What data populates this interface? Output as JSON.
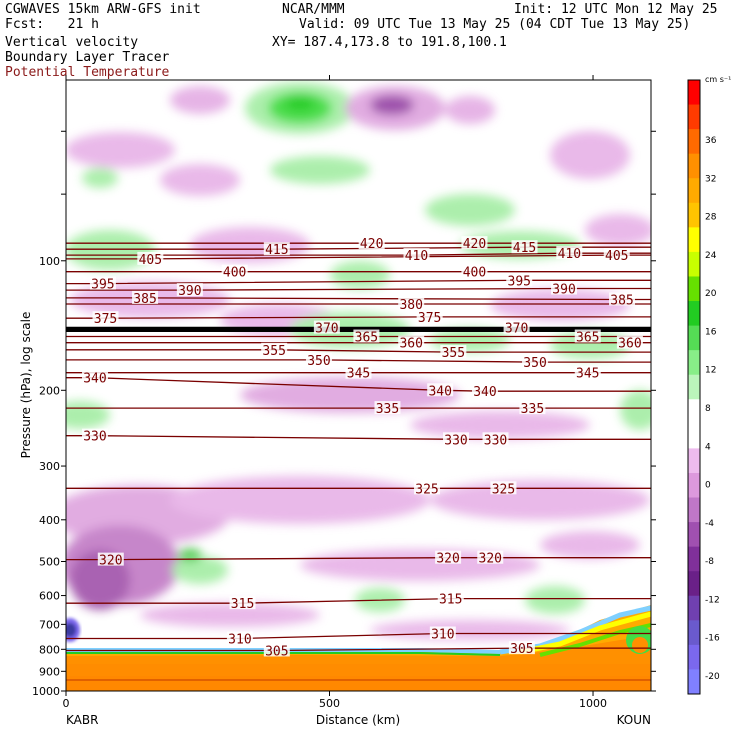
{
  "header": {
    "model": "CGWAVES 15km ARW-GFS init",
    "fcst": "Fcst:   21 h",
    "field1": "Vertical velocity",
    "field2": "Boundary Layer Tracer",
    "field3": "Potential Temperature",
    "center": "NCAR/MMM",
    "xy": "XY= 187.4,173.8 to 191.8,100.1",
    "init": "Init: 12 UTC Mon 12 May 25",
    "valid": "Valid: 09 UTC Tue 13 May 25 (04 CDT Tue 13 May 25)"
  },
  "colorbar": {
    "unit": "cm s⁻¹",
    "labels": [
      "36",
      "32",
      "28",
      "24",
      "20",
      "16",
      "12",
      "8",
      "4",
      "0",
      "-4",
      "-8",
      "-12",
      "-16",
      "-20"
    ],
    "colors": [
      "#ff0000",
      "#ff3b00",
      "#ff6a00",
      "#ff9000",
      "#ffaa00",
      "#ffc400",
      "#ffff00",
      "#c8ff00",
      "#66e000",
      "#22cc22",
      "#55dd55",
      "#88ee88",
      "#bbf5bb",
      "#ffffff",
      "#ffffff",
      "#eebbee",
      "#dd99dd",
      "#c077c8",
      "#a050b0",
      "#80309a",
      "#6a2088",
      "#7040b0",
      "#6a5acd",
      "#7b68ee",
      "#8080ff"
    ]
  },
  "chart_data": {
    "type": "contour",
    "title": "",
    "xlabel": "Distance (km)",
    "ylabel": "Pressure (hPa), log scale",
    "x_ticks": [
      0,
      500,
      1000
    ],
    "xlim": [
      0,
      1110
    ],
    "y_ticks": [
      100,
      200,
      300,
      400,
      500,
      600,
      700,
      800,
      900,
      1000
    ],
    "ylim": [
      1000,
      38
    ],
    "y_scale": "log",
    "left_endpoint": "KABR",
    "right_endpoint": "KOUN",
    "theta_contour_labels": [
      {
        "value": "420",
        "x": 580,
        "p": 91
      },
      {
        "value": "420",
        "x": 775,
        "p": 91
      },
      {
        "value": "415",
        "x": 400,
        "p": 94
      },
      {
        "value": "415",
        "x": 870,
        "p": 93
      },
      {
        "value": "410",
        "x": 665,
        "p": 97
      },
      {
        "value": "410",
        "x": 955,
        "p": 96
      },
      {
        "value": "405",
        "x": 160,
        "p": 99
      },
      {
        "value": "405",
        "x": 1045,
        "p": 97
      },
      {
        "value": "400",
        "x": 320,
        "p": 106
      },
      {
        "value": "400",
        "x": 775,
        "p": 106
      },
      {
        "value": "395",
        "x": 70,
        "p": 113
      },
      {
        "value": "395",
        "x": 860,
        "p": 111
      },
      {
        "value": "390",
        "x": 235,
        "p": 117
      },
      {
        "value": "390",
        "x": 945,
        "p": 116
      },
      {
        "value": "385",
        "x": 150,
        "p": 122
      },
      {
        "value": "385",
        "x": 1055,
        "p": 123
      },
      {
        "value": "380",
        "x": 655,
        "p": 126
      },
      {
        "value": "375",
        "x": 75,
        "p": 136
      },
      {
        "value": "375",
        "x": 690,
        "p": 135
      },
      {
        "value": "370",
        "x": 495,
        "p": 143
      },
      {
        "value": "370",
        "x": 855,
        "p": 143
      },
      {
        "value": "365",
        "x": 570,
        "p": 150
      },
      {
        "value": "365",
        "x": 990,
        "p": 150
      },
      {
        "value": "360",
        "x": 655,
        "p": 155
      },
      {
        "value": "360",
        "x": 1070,
        "p": 155
      },
      {
        "value": "355",
        "x": 395,
        "p": 161
      },
      {
        "value": "355",
        "x": 735,
        "p": 163
      },
      {
        "value": "350",
        "x": 480,
        "p": 170
      },
      {
        "value": "350",
        "x": 890,
        "p": 172
      },
      {
        "value": "345",
        "x": 555,
        "p": 182
      },
      {
        "value": "345",
        "x": 990,
        "p": 182
      },
      {
        "value": "340",
        "x": 55,
        "p": 187
      },
      {
        "value": "340",
        "x": 710,
        "p": 200
      },
      {
        "value": "340",
        "x": 795,
        "p": 201
      },
      {
        "value": "335",
        "x": 610,
        "p": 220
      },
      {
        "value": "335",
        "x": 885,
        "p": 220
      },
      {
        "value": "330",
        "x": 55,
        "p": 255
      },
      {
        "value": "330",
        "x": 740,
        "p": 260
      },
      {
        "value": "330",
        "x": 815,
        "p": 260
      },
      {
        "value": "325",
        "x": 685,
        "p": 338
      },
      {
        "value": "325",
        "x": 830,
        "p": 338
      },
      {
        "value": "320",
        "x": 85,
        "p": 495
      },
      {
        "value": "320",
        "x": 725,
        "p": 490
      },
      {
        "value": "320",
        "x": 805,
        "p": 490
      },
      {
        "value": "315",
        "x": 335,
        "p": 625
      },
      {
        "value": "315",
        "x": 730,
        "p": 610
      },
      {
        "value": "310",
        "x": 330,
        "p": 755
      },
      {
        "value": "310",
        "x": 715,
        "p": 735
      },
      {
        "value": "305",
        "x": 400,
        "p": 805
      },
      {
        "value": "305",
        "x": 865,
        "p": 795
      }
    ]
  }
}
